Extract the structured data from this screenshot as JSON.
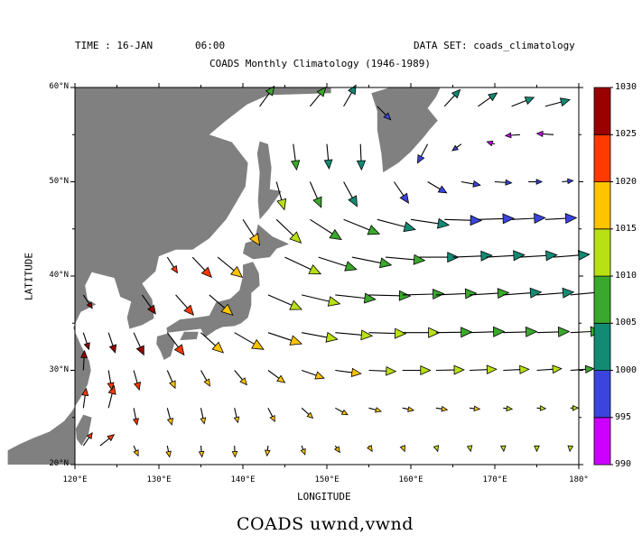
{
  "header": {
    "time_label": "TIME : 16-JAN",
    "time_hour": "06:00",
    "dataset_label": "DATA SET: coads_climatology",
    "subtitle": "COADS Monthly Climatology (1946-1989)"
  },
  "footer": {
    "caption": "COADS uwnd,vwnd"
  },
  "colors": {
    "land": "#808080",
    "ocean": "#ffffff",
    "frame": "#000000"
  },
  "chart_data": {
    "type": "vector",
    "title": "COADS Monthly Climatology (1946-1989)",
    "xlabel": "LONGITUDE",
    "ylabel": "LATITUDE",
    "xlim": [
      120,
      180
    ],
    "ylim": [
      20,
      60
    ],
    "x_ticks": [
      120,
      130,
      140,
      150,
      160,
      170,
      180
    ],
    "x_tick_labels": [
      "120°E",
      "130°E",
      "140°E",
      "150°E",
      "160°E",
      "170°E",
      "180°"
    ],
    "y_ticks": [
      20,
      30,
      40,
      50,
      60
    ],
    "y_tick_labels": [
      "20°N",
      "30°N",
      "40°N",
      "50°N",
      "60°N"
    ],
    "colorbar": {
      "levels": [
        990,
        995,
        1000,
        1005,
        1010,
        1015,
        1020,
        1025,
        1030
      ],
      "labels": [
        "990",
        "995",
        "1000",
        "1005",
        "1010",
        "1015",
        "1020",
        "1025",
        "1030"
      ],
      "colors": [
        "#cc00ff",
        "#3b44dd",
        "#138a74",
        "#3aa82c",
        "#b8e014",
        "#ffc400",
        "#ff3a00",
        "#990000"
      ]
    },
    "grid_spacing_deg": 2,
    "vectors": [
      {
        "lon": 121,
        "lat": 22,
        "u": 1.6,
        "v": 2.3,
        "p": 1024
      },
      {
        "lon": 123,
        "lat": 22,
        "u": 2.5,
        "v": 2.0,
        "p": 1022
      },
      {
        "lon": 127,
        "lat": 22,
        "u": 0.8,
        "v": -1.8,
        "p": 1018
      },
      {
        "lon": 131,
        "lat": 22,
        "u": 0.4,
        "v": -2.0,
        "p": 1017
      },
      {
        "lon": 135,
        "lat": 22,
        "u": 0.2,
        "v": -2.0,
        "p": 1016.5
      },
      {
        "lon": 139,
        "lat": 22,
        "u": 0.1,
        "v": -2.0,
        "p": 1016
      },
      {
        "lon": 143,
        "lat": 22,
        "u": -0.2,
        "v": -1.8,
        "p": 1016
      },
      {
        "lon": 147,
        "lat": 22,
        "u": 0.6,
        "v": -1.6,
        "p": 1015.5
      },
      {
        "lon": 151,
        "lat": 22,
        "u": 0.8,
        "v": -1.2,
        "p": 1015
      },
      {
        "lon": 155,
        "lat": 22,
        "u": 0.6,
        "v": -1.0,
        "p": 1015
      },
      {
        "lon": 159,
        "lat": 22,
        "u": 0.4,
        "v": -1.0,
        "p": 1015
      },
      {
        "lon": 163,
        "lat": 22,
        "u": 0.3,
        "v": -1.0,
        "p": 1014.5
      },
      {
        "lon": 167,
        "lat": 22,
        "u": 0.2,
        "v": -1.0,
        "p": 1014
      },
      {
        "lon": 171,
        "lat": 22,
        "u": 0.1,
        "v": -1.0,
        "p": 1014
      },
      {
        "lon": 175,
        "lat": 22,
        "u": 0.0,
        "v": -1.0,
        "p": 1013
      },
      {
        "lon": 179,
        "lat": 22,
        "u": -0.1,
        "v": -1.0,
        "p": 1013
      },
      {
        "lon": 121,
        "lat": 26,
        "u": 0.5,
        "v": 3.5,
        "p": 1024
      },
      {
        "lon": 124,
        "lat": 26,
        "u": 1.0,
        "v": 4.0,
        "p": 1023
      },
      {
        "lon": 127,
        "lat": 26,
        "u": 0.6,
        "v": -3.0,
        "p": 1020
      },
      {
        "lon": 131,
        "lat": 26,
        "u": 0.8,
        "v": -3.0,
        "p": 1018
      },
      {
        "lon": 135,
        "lat": 26,
        "u": 0.6,
        "v": -2.8,
        "p": 1017
      },
      {
        "lon": 139,
        "lat": 26,
        "u": 0.6,
        "v": -2.6,
        "p": 1017
      },
      {
        "lon": 143,
        "lat": 26,
        "u": 1.2,
        "v": -2.4,
        "p": 1016.5
      },
      {
        "lon": 147,
        "lat": 26,
        "u": 2.0,
        "v": -1.8,
        "p": 1016
      },
      {
        "lon": 151,
        "lat": 26,
        "u": 2.2,
        "v": -1.2,
        "p": 1016
      },
      {
        "lon": 155,
        "lat": 26,
        "u": 2.2,
        "v": -0.6,
        "p": 1016
      },
      {
        "lon": 159,
        "lat": 26,
        "u": 2.0,
        "v": -0.4,
        "p": 1015.5
      },
      {
        "lon": 163,
        "lat": 26,
        "u": 2.0,
        "v": -0.3,
        "p": 1015
      },
      {
        "lon": 167,
        "lat": 26,
        "u": 1.8,
        "v": -0.2,
        "p": 1015
      },
      {
        "lon": 171,
        "lat": 26,
        "u": 1.6,
        "v": -0.2,
        "p": 1014.5
      },
      {
        "lon": 175,
        "lat": 26,
        "u": 1.6,
        "v": -0.1,
        "p": 1014
      },
      {
        "lon": 179,
        "lat": 26,
        "u": 1.4,
        "v": 0.0,
        "p": 1013
      },
      {
        "lon": 121,
        "lat": 30,
        "u": 0.2,
        "v": 3.5,
        "p": 1025
      },
      {
        "lon": 124,
        "lat": 30,
        "u": 0.6,
        "v": -3.5,
        "p": 1024
      },
      {
        "lon": 127,
        "lat": 30,
        "u": 1.0,
        "v": -3.5,
        "p": 1021
      },
      {
        "lon": 131,
        "lat": 30,
        "u": 1.4,
        "v": -3.2,
        "p": 1019
      },
      {
        "lon": 135,
        "lat": 30,
        "u": 1.6,
        "v": -2.8,
        "p": 1018
      },
      {
        "lon": 139,
        "lat": 30,
        "u": 2.2,
        "v": -2.6,
        "p": 1017.5
      },
      {
        "lon": 143,
        "lat": 30,
        "u": 3.0,
        "v": -2.2,
        "p": 1017
      },
      {
        "lon": 147,
        "lat": 30,
        "u": 4.0,
        "v": -1.4,
        "p": 1016
      },
      {
        "lon": 151,
        "lat": 30,
        "u": 4.6,
        "v": -0.6,
        "p": 1015
      },
      {
        "lon": 155,
        "lat": 30,
        "u": 4.8,
        "v": -0.2,
        "p": 1014
      },
      {
        "lon": 159,
        "lat": 30,
        "u": 5.0,
        "v": 0.0,
        "p": 1013
      },
      {
        "lon": 163,
        "lat": 30,
        "u": 5.0,
        "v": 0.1,
        "p": 1012
      },
      {
        "lon": 167,
        "lat": 30,
        "u": 4.8,
        "v": 0.2,
        "p": 1011
      },
      {
        "lon": 171,
        "lat": 30,
        "u": 4.6,
        "v": 0.2,
        "p": 1010.5
      },
      {
        "lon": 175,
        "lat": 30,
        "u": 4.4,
        "v": 0.3,
        "p": 1010
      },
      {
        "lon": 179,
        "lat": 30,
        "u": 4.2,
        "v": 0.3,
        "p": 1009
      },
      {
        "lon": 121,
        "lat": 34,
        "u": 1.0,
        "v": -3.0,
        "p": 1027
      },
      {
        "lon": 124,
        "lat": 34,
        "u": 1.2,
        "v": -3.6,
        "p": 1026
      },
      {
        "lon": 127,
        "lat": 34,
        "u": 1.8,
        "v": -4.0,
        "p": 1025
      },
      {
        "lon": 131,
        "lat": 34,
        "u": 3.0,
        "v": -4.0,
        "p": 1023
      },
      {
        "lon": 135,
        "lat": 34,
        "u": 4.0,
        "v": -3.6,
        "p": 1019
      },
      {
        "lon": 139,
        "lat": 34,
        "u": 5.2,
        "v": -3.0,
        "p": 1017
      },
      {
        "lon": 143,
        "lat": 34,
        "u": 6.0,
        "v": -2.0,
        "p": 1015
      },
      {
        "lon": 147,
        "lat": 34,
        "u": 6.4,
        "v": -1.2,
        "p": 1013
      },
      {
        "lon": 151,
        "lat": 34,
        "u": 6.6,
        "v": -0.6,
        "p": 1012
      },
      {
        "lon": 155,
        "lat": 34,
        "u": 6.6,
        "v": -0.2,
        "p": 1011
      },
      {
        "lon": 159,
        "lat": 34,
        "u": 6.6,
        "v": 0.0,
        "p": 1010
      },
      {
        "lon": 163,
        "lat": 34,
        "u": 6.4,
        "v": 0.1,
        "p": 1009
      },
      {
        "lon": 167,
        "lat": 34,
        "u": 6.2,
        "v": 0.2,
        "p": 1008
      },
      {
        "lon": 171,
        "lat": 34,
        "u": 6.0,
        "v": 0.2,
        "p": 1007
      },
      {
        "lon": 175,
        "lat": 34,
        "u": 5.8,
        "v": 0.2,
        "p": 1006.5
      },
      {
        "lon": 179,
        "lat": 34,
        "u": 5.6,
        "v": 0.3,
        "p": 1006
      },
      {
        "lon": 121,
        "lat": 38,
        "u": 1.6,
        "v": -2.4,
        "p": 1028
      },
      {
        "lon": 128,
        "lat": 38,
        "u": 2.4,
        "v": -3.4,
        "p": 1027
      },
      {
        "lon": 132,
        "lat": 38,
        "u": 3.2,
        "v": -3.6,
        "p": 1024
      },
      {
        "lon": 136,
        "lat": 38,
        "u": 4.2,
        "v": -3.6,
        "p": 1019
      },
      {
        "lon": 143,
        "lat": 38,
        "u": 6.0,
        "v": -2.6,
        "p": 1013
      },
      {
        "lon": 147,
        "lat": 38,
        "u": 6.8,
        "v": -1.6,
        "p": 1011
      },
      {
        "lon": 151,
        "lat": 38,
        "u": 7.2,
        "v": -0.8,
        "p": 1009
      },
      {
        "lon": 155,
        "lat": 38,
        "u": 7.4,
        "v": -0.2,
        "p": 1008
      },
      {
        "lon": 159,
        "lat": 38,
        "u": 7.4,
        "v": 0.2,
        "p": 1007
      },
      {
        "lon": 163,
        "lat": 38,
        "u": 7.2,
        "v": 0.3,
        "p": 1006
      },
      {
        "lon": 167,
        "lat": 38,
        "u": 7.0,
        "v": 0.4,
        "p": 1005
      },
      {
        "lon": 171,
        "lat": 38,
        "u": 6.8,
        "v": 0.5,
        "p": 1004
      },
      {
        "lon": 175,
        "lat": 38,
        "u": 6.6,
        "v": 0.5,
        "p": 1003.5
      },
      {
        "lon": 179,
        "lat": 38,
        "u": 6.4,
        "v": 0.6,
        "p": 1003
      },
      {
        "lon": 131,
        "lat": 42,
        "u": 1.8,
        "v": -2.8,
        "p": 1022
      },
      {
        "lon": 134,
        "lat": 42,
        "u": 3.4,
        "v": -3.6,
        "p": 1020
      },
      {
        "lon": 137,
        "lat": 42,
        "u": 4.4,
        "v": -3.6,
        "p": 1017
      },
      {
        "lon": 145,
        "lat": 42,
        "u": 6.4,
        "v": -3.0,
        "p": 1012
      },
      {
        "lon": 149,
        "lat": 42,
        "u": 6.8,
        "v": -2.2,
        "p": 1009
      },
      {
        "lon": 153,
        "lat": 42,
        "u": 7.0,
        "v": -1.4,
        "p": 1007
      },
      {
        "lon": 157,
        "lat": 42,
        "u": 7.0,
        "v": -0.6,
        "p": 1005
      },
      {
        "lon": 161,
        "lat": 42,
        "u": 7.0,
        "v": 0.0,
        "p": 1004
      },
      {
        "lon": 165,
        "lat": 42,
        "u": 7.0,
        "v": 0.3,
        "p": 1003
      },
      {
        "lon": 169,
        "lat": 42,
        "u": 6.8,
        "v": 0.4,
        "p": 1002
      },
      {
        "lon": 173,
        "lat": 42,
        "u": 6.6,
        "v": 0.4,
        "p": 1001.5
      },
      {
        "lon": 177,
        "lat": 42,
        "u": 6.4,
        "v": 0.5,
        "p": 1001
      },
      {
        "lon": 140,
        "lat": 46,
        "u": 3.0,
        "v": -4.6,
        "p": 1015
      },
      {
        "lon": 144,
        "lat": 46,
        "u": 4.4,
        "v": -4.2,
        "p": 1012
      },
      {
        "lon": 148,
        "lat": 46,
        "u": 5.6,
        "v": -3.6,
        "p": 1008
      },
      {
        "lon": 152,
        "lat": 46,
        "u": 6.4,
        "v": -2.6,
        "p": 1005
      },
      {
        "lon": 156,
        "lat": 46,
        "u": 6.8,
        "v": -1.8,
        "p": 1002
      },
      {
        "lon": 160,
        "lat": 46,
        "u": 6.8,
        "v": -1.0,
        "p": 1000
      },
      {
        "lon": 164,
        "lat": 46,
        "u": 6.6,
        "v": -0.2,
        "p": 999
      },
      {
        "lon": 168,
        "lat": 46,
        "u": 6.4,
        "v": 0.2,
        "p": 998
      },
      {
        "lon": 172,
        "lat": 46,
        "u": 6.0,
        "v": 0.3,
        "p": 997
      },
      {
        "lon": 176,
        "lat": 46,
        "u": 5.6,
        "v": 0.3,
        "p": 996
      },
      {
        "lon": 144,
        "lat": 50,
        "u": 1.4,
        "v": -5.0,
        "p": 1010
      },
      {
        "lon": 148,
        "lat": 50,
        "u": 2.0,
        "v": -4.6,
        "p": 1007
      },
      {
        "lon": 152,
        "lat": 50,
        "u": 2.4,
        "v": -4.4,
        "p": 1003
      },
      {
        "lon": 158,
        "lat": 50,
        "u": 2.6,
        "v": -3.8,
        "p": 999
      },
      {
        "lon": 162,
        "lat": 50,
        "u": 3.4,
        "v": -2.0,
        "p": 997
      },
      {
        "lon": 166,
        "lat": 50,
        "u": 3.4,
        "v": -0.6,
        "p": 996
      },
      {
        "lon": 170,
        "lat": 50,
        "u": 3.0,
        "v": -0.2,
        "p": 995.5
      },
      {
        "lon": 174,
        "lat": 50,
        "u": 2.4,
        "v": 0.0,
        "p": 995
      },
      {
        "lon": 178,
        "lat": 50,
        "u": 2.0,
        "v": 0.2,
        "p": 995
      },
      {
        "lon": 146,
        "lat": 54,
        "u": 0.6,
        "v": -4.6,
        "p": 1006
      },
      {
        "lon": 150,
        "lat": 54,
        "u": 0.4,
        "v": -4.4,
        "p": 1003
      },
      {
        "lon": 154,
        "lat": 54,
        "u": 0.2,
        "v": -4.6,
        "p": 1000
      },
      {
        "lon": 162,
        "lat": 54,
        "u": -1.8,
        "v": -3.4,
        "p": 998
      },
      {
        "lon": 166,
        "lat": 54,
        "u": -1.6,
        "v": -1.2,
        "p": 996
      },
      {
        "lon": 170,
        "lat": 54,
        "u": -1.4,
        "v": 0.4,
        "p": 994
      },
      {
        "lon": 173,
        "lat": 55,
        "u": -2.6,
        "v": -0.2,
        "p": 992
      },
      {
        "lon": 177,
        "lat": 55,
        "u": -3.0,
        "v": 0.2,
        "p": 994
      },
      {
        "lon": 142,
        "lat": 58,
        "u": 2.6,
        "v": 3.6,
        "p": 1008
      },
      {
        "lon": 148,
        "lat": 58,
        "u": 2.8,
        "v": 3.4,
        "p": 1006
      },
      {
        "lon": 152,
        "lat": 58,
        "u": 2.2,
        "v": 3.8,
        "p": 1003
      },
      {
        "lon": 156,
        "lat": 58,
        "u": 2.4,
        "v": -2.4,
        "p": 999
      },
      {
        "lon": 164,
        "lat": 58,
        "u": 2.8,
        "v": 3.0,
        "p": 1001
      },
      {
        "lon": 168,
        "lat": 58,
        "u": 3.4,
        "v": 2.4,
        "p": 1002
      },
      {
        "lon": 172,
        "lat": 58,
        "u": 4.0,
        "v": 1.6,
        "p": 1002
      },
      {
        "lon": 176,
        "lat": 58,
        "u": 4.4,
        "v": 1.2,
        "p": 1002
      }
    ]
  }
}
